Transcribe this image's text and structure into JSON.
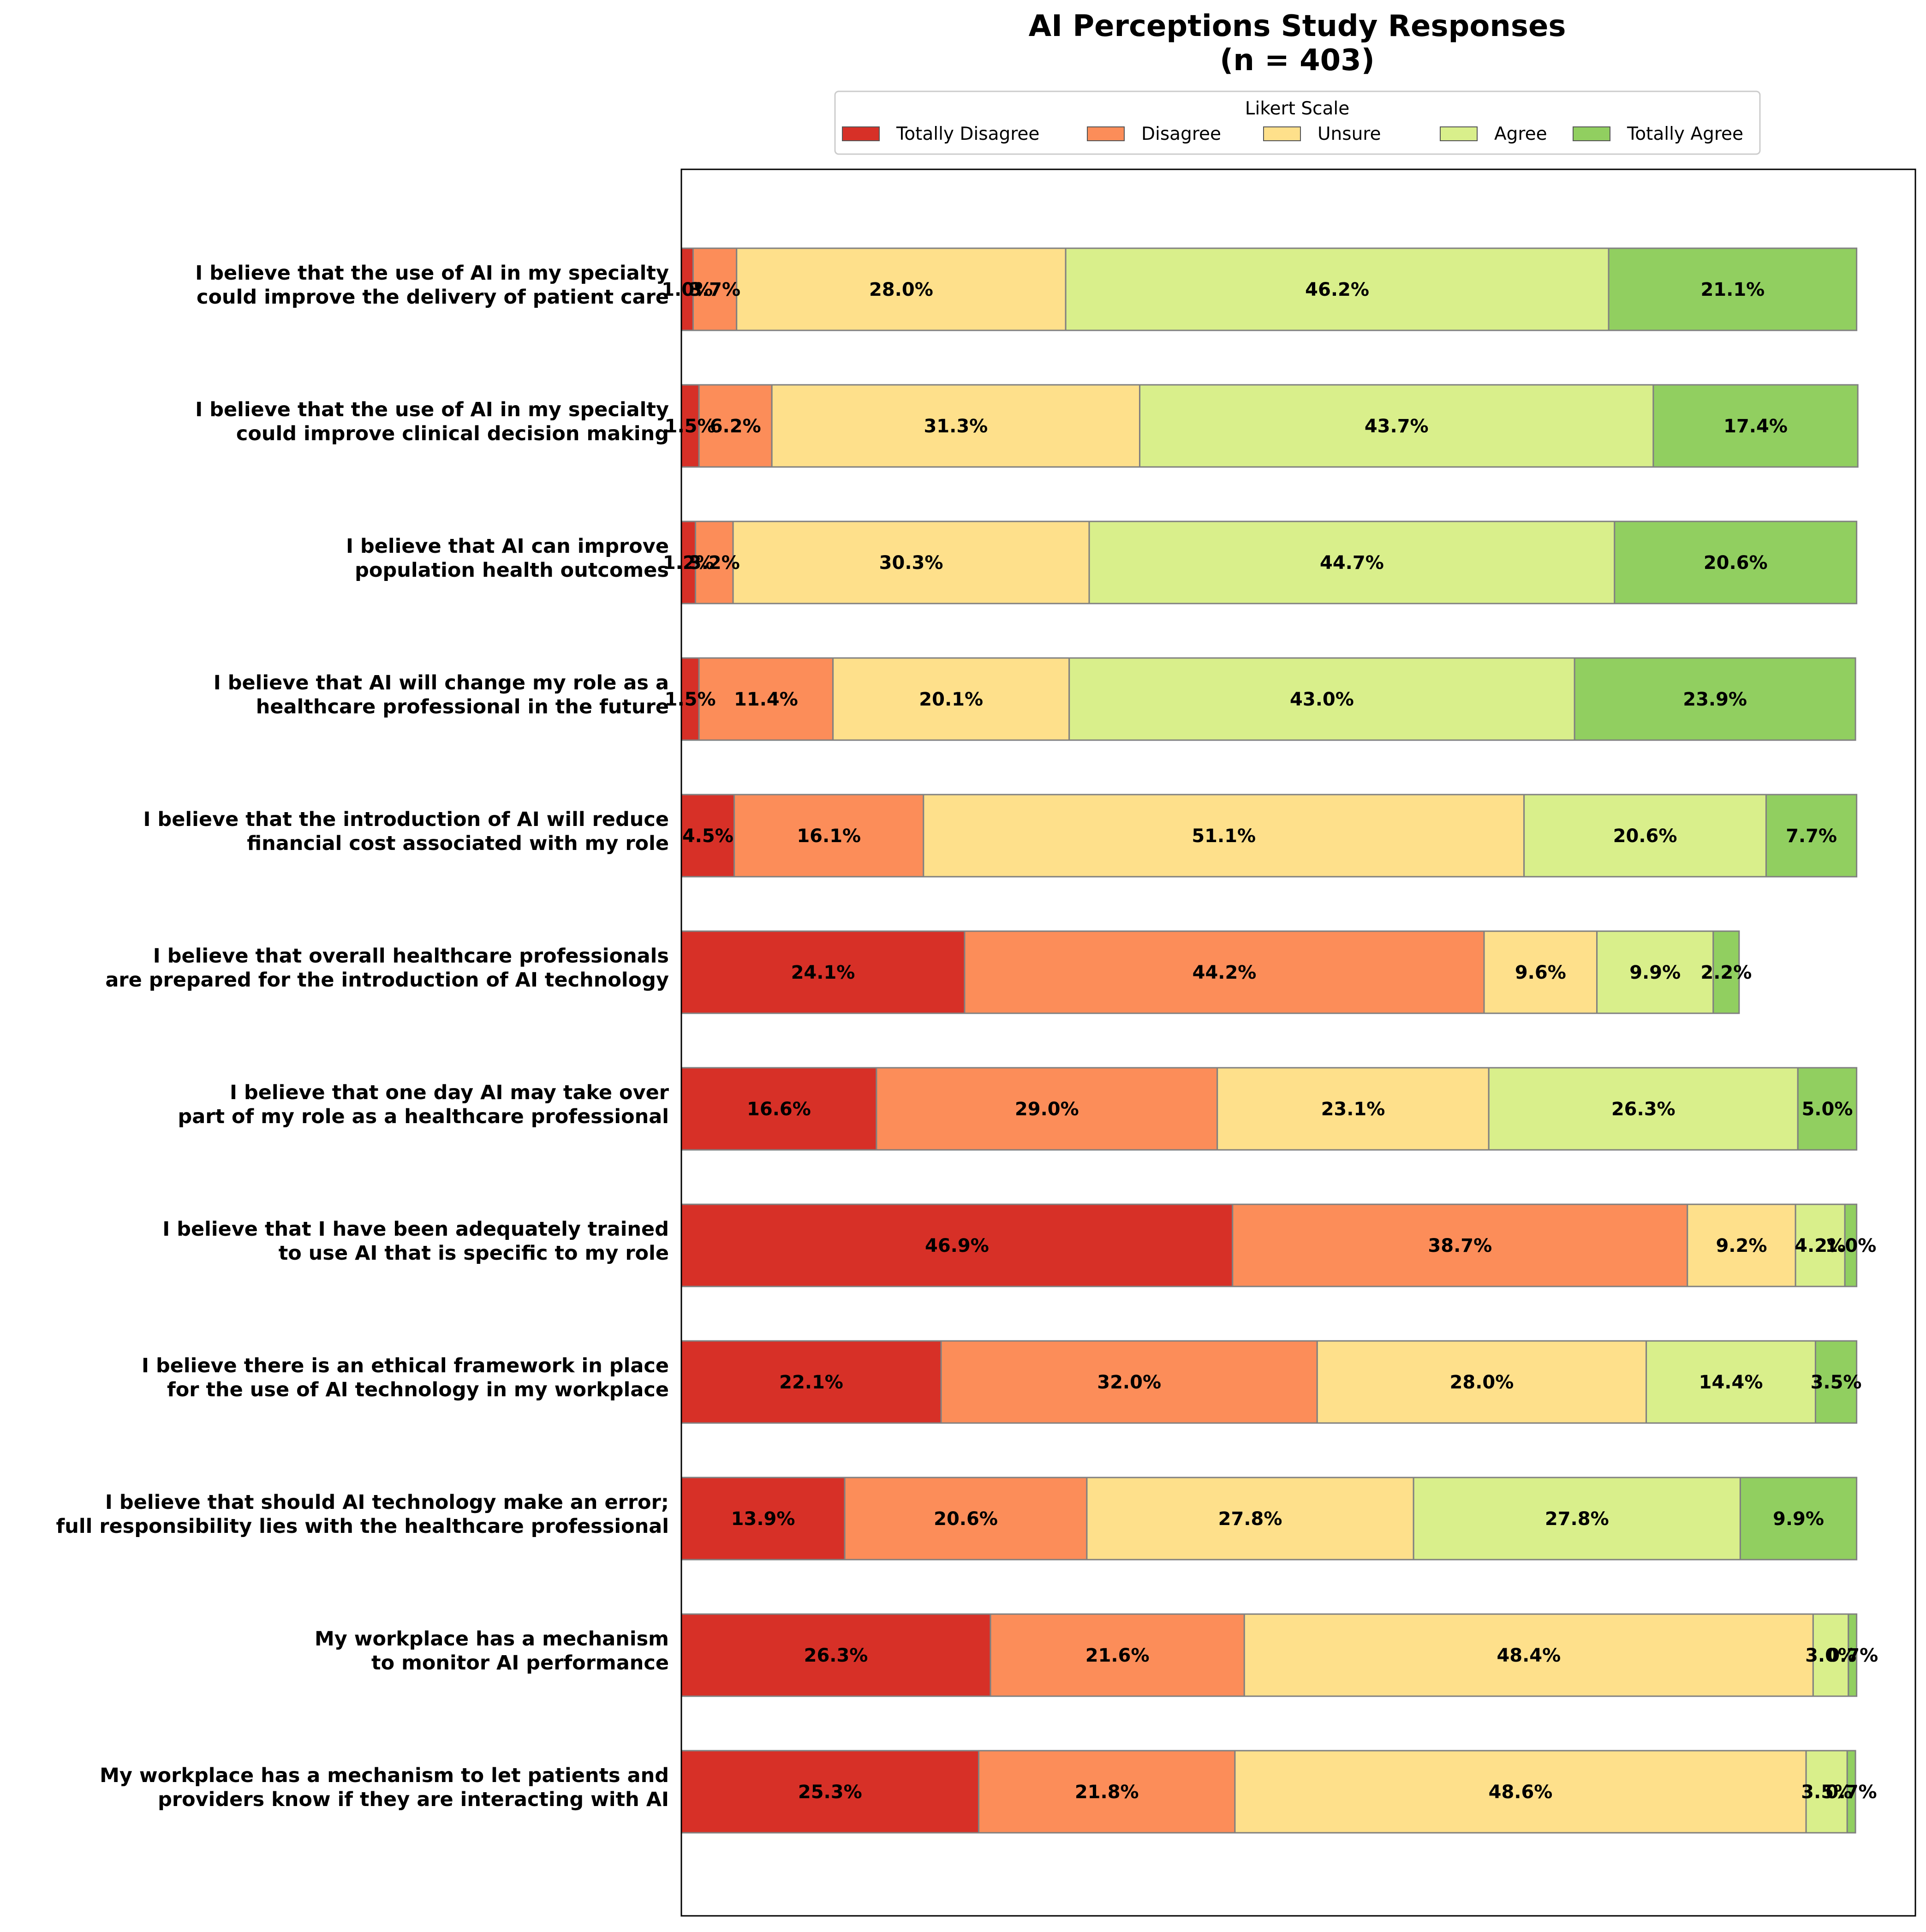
{
  "chart_data": {
    "type": "bar",
    "orientation": "horizontal",
    "stacked": true,
    "title": "AI Perceptions Study Responses",
    "subtitle": "(n = 403)",
    "legend": {
      "title": "Likert Scale",
      "placement": "top-center"
    },
    "grid": false,
    "xlim": [
      0,
      105
    ],
    "categories": [
      "I believe that the use of AI in my specialty\ncould improve the delivery of patient care",
      "I believe that the use of AI in my specialty\ncould improve clinical decision making",
      "I believe that AI can improve\npopulation health outcomes",
      "I believe that AI will change my role as a\nhealthcare professional in the future",
      "I believe that the introduction of AI will reduce\nfinancial cost associated with my role",
      "I believe that overall healthcare professionals\nare prepared for the introduction of AI technology",
      "I believe that one day AI may take over\npart of my role as a healthcare professional",
      "I believe that I have been adequately trained\nto use AI that is specific to my role",
      "I believe there is an ethical framework in place\nfor the use of AI technology in my workplace",
      "I believe that should AI technology make an error;\nfull responsibility lies with the healthcare professional",
      "My workplace has a mechanism\nto monitor AI performance",
      "My workplace has a mechanism to let patients and\nproviders know if they are interacting with AI"
    ],
    "series": [
      {
        "name": "Totally Disagree",
        "color": "#d73027",
        "values": [
          1.0,
          1.5,
          1.2,
          1.5,
          4.5,
          24.1,
          16.6,
          46.9,
          22.1,
          13.9,
          26.3,
          25.3
        ]
      },
      {
        "name": "Disagree",
        "color": "#fc8d59",
        "values": [
          3.7,
          6.2,
          3.2,
          11.4,
          16.1,
          44.2,
          29.0,
          38.7,
          32.0,
          20.6,
          21.6,
          21.8
        ]
      },
      {
        "name": "Unsure",
        "color": "#fee08b",
        "values": [
          28.0,
          31.3,
          30.3,
          20.1,
          51.1,
          9.6,
          23.1,
          9.2,
          28.0,
          27.8,
          48.4,
          48.6
        ]
      },
      {
        "name": "Agree",
        "color": "#d9ef8b",
        "values": [
          46.2,
          43.7,
          44.7,
          43.0,
          20.6,
          9.9,
          26.3,
          4.2,
          14.4,
          27.8,
          3.0,
          3.5
        ]
      },
      {
        "name": "Totally Agree",
        "color": "#91cf60",
        "values": [
          21.1,
          17.4,
          20.6,
          23.9,
          7.7,
          2.2,
          5.0,
          1.0,
          3.5,
          9.9,
          0.7,
          0.7
        ]
      }
    ],
    "value_label_suffix": "%"
  }
}
